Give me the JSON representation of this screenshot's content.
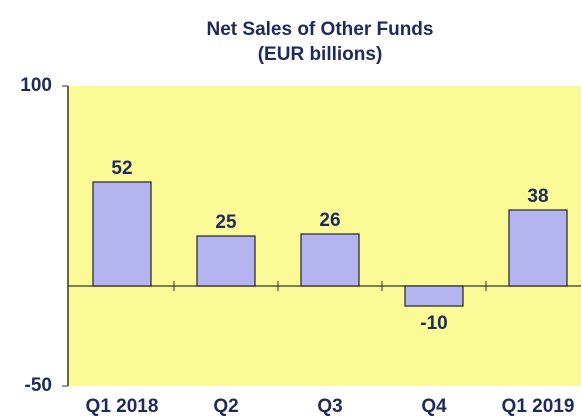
{
  "chart_data": {
    "type": "bar",
    "title": "Net Sales of Other Funds",
    "subtitle": "(EUR billions)",
    "categories": [
      "Q1 2018",
      "Q2",
      "Q3",
      "Q4",
      "Q1 2019"
    ],
    "values": [
      52,
      25,
      26,
      -10,
      38
    ],
    "color": "#b4b4f0",
    "ylim": [
      -50,
      100
    ],
    "yticks": [
      -50,
      100
    ],
    "grid": false
  }
}
